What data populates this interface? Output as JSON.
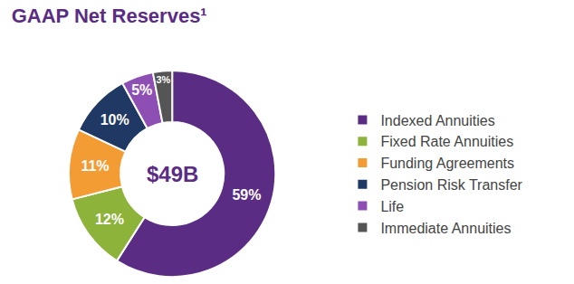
{
  "chart_data": {
    "type": "pie",
    "title": "GAAP Net Reserves¹",
    "annotations": [
      {
        "text": "$49B"
      }
    ],
    "categories": [
      "Indexed Annuities",
      "Fixed Rate Annuities",
      "Funding Agreements",
      "Pension Risk Transfer",
      "Life",
      "Immediate Annuities"
    ],
    "values": [
      59,
      12,
      11,
      10,
      5,
      3
    ],
    "value_labels": [
      "59%",
      "12%",
      "11%",
      "10%",
      "5%",
      "3%"
    ],
    "colors": [
      "#5b2c83",
      "#8db33a",
      "#f39c34",
      "#1f3864",
      "#8e4fb5",
      "#555555"
    ],
    "data_labels": true,
    "legend": "right"
  }
}
